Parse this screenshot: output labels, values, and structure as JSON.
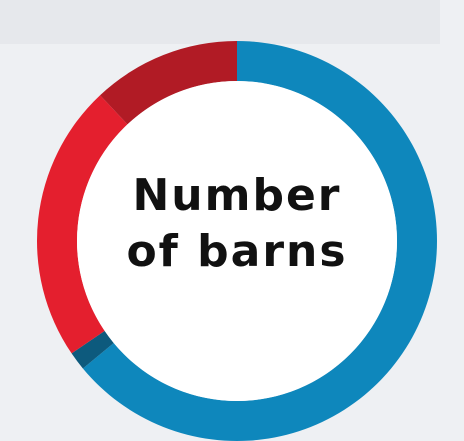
{
  "chart_data": {
    "type": "donut",
    "title": "Number of barns",
    "categories": [
      null,
      null,
      null,
      null
    ],
    "values": [
      64,
      1.5,
      22.5,
      12
    ],
    "colors": [
      "#0e87bc",
      "#0d5a7d",
      "#e41f2e",
      "#b11b25"
    ]
  }
}
